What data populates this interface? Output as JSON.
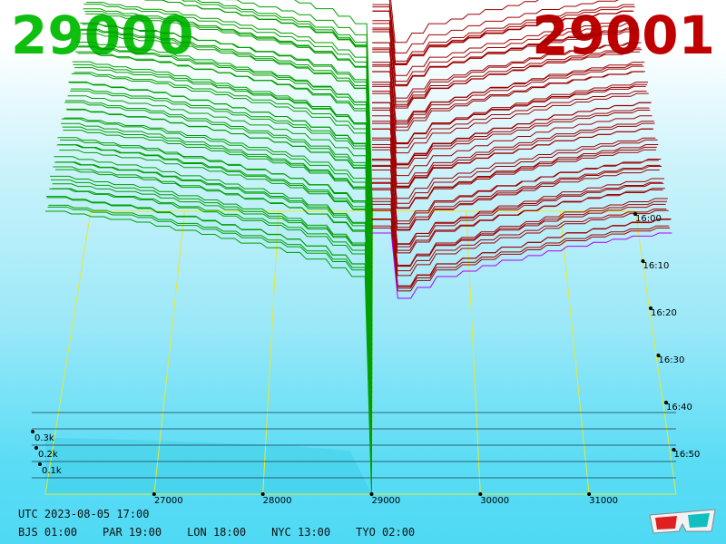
{
  "header": {
    "bid_price": "29000",
    "ask_price": "29001",
    "bid_color": "#0fbf0f",
    "ask_color": "#c00000"
  },
  "footer": {
    "utc_label": "UTC 2023-08-05 17:00",
    "zones": [
      {
        "label": "BJS 01:00"
      },
      {
        "label": "PAR 19:00"
      },
      {
        "label": "LON 18:00"
      },
      {
        "label": "NYC 13:00"
      },
      {
        "label": "TYO 02:00"
      }
    ]
  },
  "decor": {
    "icon": "3d-glasses-icon"
  },
  "chart_data": {
    "type": "area",
    "subtype": "3d-order-book-depth-history",
    "x_axis": {
      "ticks": [
        27000,
        28000,
        29000,
        30000,
        31000
      ],
      "range": [
        26000,
        31800
      ]
    },
    "y_axis": {
      "ticks": [
        "0.1k",
        "0.2k",
        "0.3k"
      ],
      "range": [
        0,
        0.55
      ]
    },
    "time_axis": {
      "ticks": [
        "16:00",
        "16:10",
        "16:20",
        "16:30",
        "16:40",
        "16:50"
      ]
    },
    "series": [
      {
        "side": "bid",
        "color": "#00a000",
        "note_colors": "green"
      },
      {
        "side": "ask",
        "color": "#a00000"
      }
    ],
    "snapshots": 60,
    "bid_depth_profile": [
      [
        26000,
        0.52
      ],
      [
        26800,
        0.5
      ],
      [
        27600,
        0.47
      ],
      [
        28300,
        0.44
      ],
      [
        28800,
        0.4
      ],
      [
        29000,
        0.0
      ]
    ],
    "ask_depth_profile": [
      [
        29001,
        0.0
      ],
      [
        29100,
        0.35
      ],
      [
        29600,
        0.4
      ],
      [
        30200,
        0.43
      ],
      [
        30900,
        0.46
      ],
      [
        31600,
        0.48
      ]
    ],
    "latest_ask_color": "#b000ff"
  }
}
